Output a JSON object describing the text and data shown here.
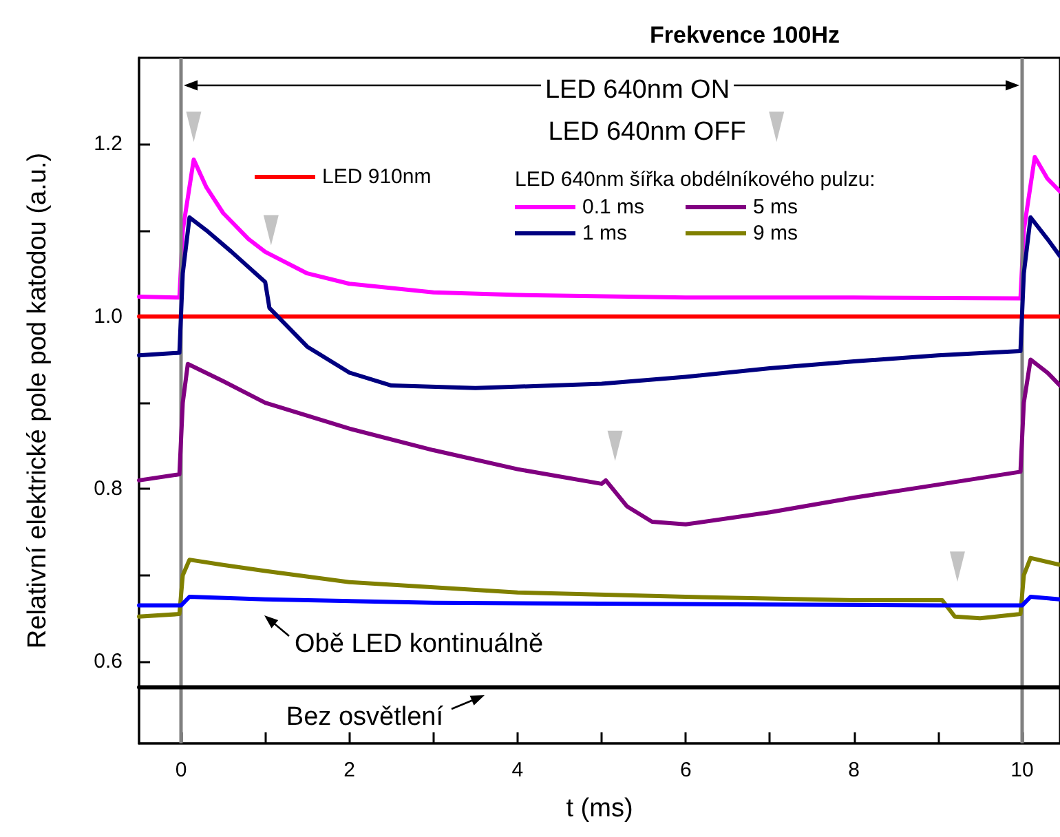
{
  "chart_data": {
    "type": "line",
    "title": "Frekvence 100Hz",
    "xlabel": "t (ms)",
    "ylabel": "Relativní elektrické pole pod katodou (a.u.)",
    "legend_title": "LED 640nm šířka obdélníkového pulzu:",
    "xlim": [
      -0.5,
      10.45
    ],
    "ylim": [
      0.505,
      1.3
    ],
    "xticks": [
      0,
      {
        "value": 1,
        "label": null
      },
      2,
      {
        "value": 3,
        "label": null
      },
      4,
      {
        "value": 5,
        "label": null
      },
      6,
      {
        "value": 7,
        "label": null
      },
      8,
      {
        "value": 9,
        "label": null
      },
      10
    ],
    "yticks": [
      0.6,
      {
        "value": 0.7,
        "label": null
      },
      0.8,
      {
        "value": 0.9,
        "label": null
      },
      {
        "value": 1,
        "label": "1.0"
      },
      {
        "value": 1.1,
        "label": null
      },
      1.2
    ],
    "grid": false,
    "legend": "top left",
    "marker": "none",
    "line_style": "solid",
    "series": [
      {
        "name": "LED 910nm",
        "color": "#ff0000",
        "x": [
          -0.5,
          5,
          10.45
        ],
        "values": [
          1.0,
          1.0,
          1.0
        ]
      },
      {
        "name": "0.1 ms",
        "color": "#ff00ff",
        "x": [
          -0.5,
          -0.02,
          0.02,
          0.15,
          0.3,
          0.5,
          0.8,
          1.0,
          1.5,
          2,
          3,
          4,
          6,
          8,
          9.98,
          10.02,
          10.15,
          10.3,
          10.45
        ],
        "values": [
          1.023,
          1.022,
          1.1,
          1.182,
          1.15,
          1.12,
          1.09,
          1.075,
          1.05,
          1.038,
          1.028,
          1.025,
          1.022,
          1.022,
          1.021,
          1.1,
          1.185,
          1.16,
          1.145
        ]
      },
      {
        "name": "1 ms",
        "color": "#000080",
        "x": [
          -0.5,
          -0.02,
          0.02,
          0.1,
          0.3,
          0.6,
          1.0,
          1.05,
          1.2,
          1.5,
          2,
          2.5,
          3.5,
          5,
          6,
          7,
          8,
          9,
          9.98,
          10.02,
          10.1,
          10.3,
          10.45
        ],
        "values": [
          0.955,
          0.958,
          1.05,
          1.115,
          1.1,
          1.075,
          1.04,
          1.01,
          0.995,
          0.965,
          0.935,
          0.92,
          0.917,
          0.922,
          0.93,
          0.94,
          0.948,
          0.955,
          0.96,
          1.05,
          1.115,
          1.09,
          1.07
        ]
      },
      {
        "name": "5 ms",
        "color": "#800080",
        "x": [
          -0.5,
          -0.02,
          0.02,
          0.08,
          0.5,
          1,
          2,
          3,
          4,
          5,
          5.05,
          5.3,
          5.6,
          6,
          7,
          8,
          9,
          9.98,
          10.02,
          10.1,
          10.3,
          10.45
        ],
        "values": [
          0.81,
          0.817,
          0.9,
          0.945,
          0.925,
          0.9,
          0.87,
          0.845,
          0.823,
          0.806,
          0.81,
          0.78,
          0.762,
          0.759,
          0.773,
          0.79,
          0.805,
          0.82,
          0.9,
          0.95,
          0.935,
          0.92
        ]
      },
      {
        "name": "9 ms",
        "color": "#808000",
        "x": [
          -0.5,
          -0.02,
          0.02,
          0.1,
          0.5,
          1,
          2,
          4,
          6,
          8,
          9.05,
          9.2,
          9.5,
          9.98,
          10.02,
          10.1,
          10.45
        ],
        "values": [
          0.652,
          0.655,
          0.7,
          0.718,
          0.712,
          0.705,
          0.692,
          0.68,
          0.675,
          0.671,
          0.671,
          0.652,
          0.65,
          0.655,
          0.7,
          0.72,
          0.712
        ]
      },
      {
        "color": "#0000ff",
        "x": [
          -0.5,
          0,
          0.1,
          1,
          3,
          5,
          7,
          9,
          10,
          10.1,
          10.45
        ],
        "values": [
          0.665,
          0.665,
          0.675,
          0.672,
          0.668,
          0.667,
          0.666,
          0.665,
          0.665,
          0.675,
          0.672
        ]
      },
      {
        "color": "#000000",
        "x": [
          -0.5,
          5,
          10.45
        ],
        "values": [
          0.57,
          0.57,
          0.57
        ]
      },
      {
        "type": "scatter",
        "marker": "triangle",
        "color": "#b4b4b4",
        "x": [
          0.15,
          1.07,
          5.16,
          9.23,
          7.08
        ],
        "values": [
          1.22,
          1.1,
          0.85,
          0.71,
          1.22
        ]
      }
    ],
    "ref_lines": [
      {
        "axis": "x",
        "value": 0,
        "color": "#808080"
      },
      {
        "axis": "x",
        "value": 10,
        "color": "#808080"
      }
    ],
    "annotations": [
      "LED 640nm ON",
      "LED 640nm OFF",
      "Obě LED kontinuálně",
      "Bez osvětlení"
    ]
  }
}
